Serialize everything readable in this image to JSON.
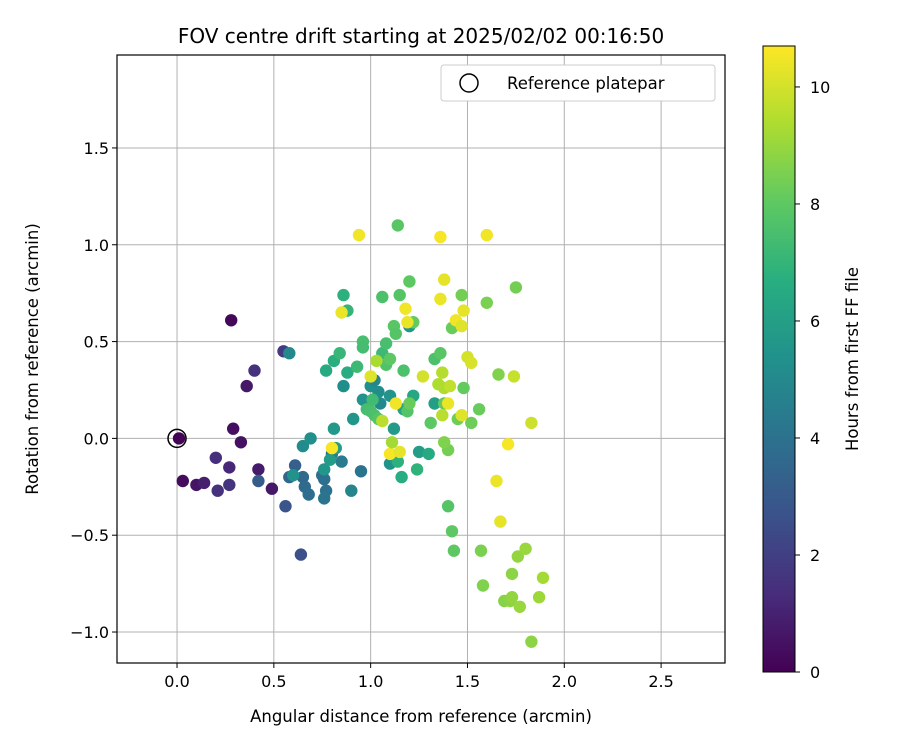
{
  "chart_data": {
    "type": "scatter",
    "title": "FOV centre drift starting at 2025/02/02 00:16:50",
    "xlabel": "Angular distance from reference (arcmin)",
    "ylabel": "Rotation from reference (arcmin)",
    "xlim": [
      -0.31,
      2.83
    ],
    "ylim": [
      -1.16,
      1.98
    ],
    "xticks": [
      0.0,
      0.5,
      1.0,
      1.5,
      2.0,
      2.5
    ],
    "xtick_labels": [
      "0.0",
      "0.5",
      "1.0",
      "1.5",
      "2.0",
      "2.5"
    ],
    "yticks": [
      -1.0,
      -0.5,
      0.0,
      0.5,
      1.0,
      1.5
    ],
    "ytick_labels": [
      "−1.0",
      "−0.5",
      "0.0",
      "0.5",
      "1.0",
      "1.5"
    ],
    "grid": true,
    "legend": {
      "position": "top-right",
      "entries": [
        {
          "label": "Reference platepar",
          "marker": "open-circle"
        }
      ],
      "reference_point": [
        0.0,
        0.0
      ]
    },
    "colorbar": {
      "label": "Hours from first FF file",
      "colormap": "viridis",
      "range": [
        0,
        10.7
      ],
      "ticks": [
        0,
        2,
        4,
        6,
        8,
        10
      ],
      "tick_labels": [
        "0",
        "2",
        "4",
        "6",
        "8",
        "10"
      ]
    },
    "series": [
      {
        "points": [
          [
            0.01,
            0.0,
            0.05
          ],
          [
            0.03,
            -0.22,
            0.3
          ],
          [
            0.1,
            -0.24,
            0.6
          ],
          [
            0.14,
            -0.23,
            0.9
          ],
          [
            0.28,
            0.61,
            0.2
          ],
          [
            0.29,
            0.05,
            0.4
          ],
          [
            0.33,
            -0.02,
            0.5
          ],
          [
            0.36,
            0.27,
            0.7
          ],
          [
            0.42,
            -0.16,
            0.8
          ],
          [
            0.49,
            -0.26,
            0.7
          ],
          [
            0.27,
            -0.15,
            1.2
          ],
          [
            0.2,
            -0.1,
            1.4
          ],
          [
            0.21,
            -0.27,
            1.5
          ],
          [
            0.27,
            -0.24,
            1.6
          ],
          [
            0.4,
            0.35,
            1.5
          ],
          [
            0.55,
            0.45,
            1.8
          ],
          [
            0.64,
            -0.6,
            2.6
          ],
          [
            0.56,
            -0.35,
            2.8
          ],
          [
            0.42,
            -0.22,
            3.1
          ],
          [
            0.61,
            -0.14,
            3.2
          ],
          [
            0.58,
            -0.2,
            3.5
          ],
          [
            0.65,
            -0.2,
            3.6
          ],
          [
            0.66,
            -0.25,
            3.7
          ],
          [
            0.68,
            -0.29,
            3.8
          ],
          [
            0.76,
            -0.21,
            3.9
          ],
          [
            0.77,
            -0.27,
            4.0
          ],
          [
            0.76,
            -0.31,
            4.1
          ],
          [
            0.75,
            -0.19,
            3.9
          ],
          [
            0.8,
            -0.08,
            4.2
          ],
          [
            0.95,
            -0.17,
            4.1
          ],
          [
            0.85,
            -0.12,
            4.4
          ],
          [
            0.9,
            -0.27,
            4.8
          ],
          [
            0.65,
            -0.04,
            5.1
          ],
          [
            0.69,
            0.0,
            5.3
          ],
          [
            0.58,
            0.44,
            5.0
          ],
          [
            0.6,
            -0.19,
            5.4
          ],
          [
            0.76,
            -0.16,
            5.6
          ],
          [
            0.79,
            -0.11,
            5.8
          ],
          [
            0.82,
            -0.05,
            5.9
          ],
          [
            0.81,
            0.05,
            5.7
          ],
          [
            0.86,
            0.27,
            5.2
          ],
          [
            0.91,
            0.1,
            5.6
          ],
          [
            0.96,
            0.2,
            5.4
          ],
          [
            1.0,
            0.27,
            5.3
          ],
          [
            1.02,
            0.3,
            4.9
          ],
          [
            1.04,
            0.24,
            5.2
          ],
          [
            1.05,
            0.18,
            5.0
          ],
          [
            1.1,
            0.22,
            5.5
          ],
          [
            1.1,
            -0.13,
            5.4
          ],
          [
            1.2,
            0.58,
            5.6
          ],
          [
            1.12,
            0.05,
            5.8
          ],
          [
            1.25,
            -0.07,
            5.9
          ],
          [
            1.17,
            0.15,
            6.2
          ],
          [
            1.22,
            0.22,
            6.3
          ],
          [
            1.3,
            -0.08,
            6.5
          ],
          [
            1.33,
            0.18,
            6.0
          ],
          [
            1.16,
            -0.2,
            6.6
          ],
          [
            1.14,
            -0.12,
            6.8
          ],
          [
            1.24,
            -0.16,
            6.9
          ],
          [
            0.77,
            0.35,
            6.5
          ],
          [
            0.81,
            0.4,
            6.7
          ],
          [
            0.84,
            0.44,
            7.1
          ],
          [
            0.86,
            0.74,
            6.8
          ],
          [
            0.88,
            0.66,
            7.0
          ],
          [
            0.88,
            0.34,
            6.6
          ],
          [
            0.93,
            0.37,
            7.2
          ],
          [
            0.96,
            0.5,
            7.5
          ],
          [
            0.96,
            0.47,
            7.4
          ],
          [
            0.98,
            0.15,
            7.4
          ],
          [
            1.0,
            0.14,
            7.5
          ],
          [
            1.02,
            0.12,
            7.6
          ],
          [
            1.01,
            0.2,
            7.3
          ],
          [
            1.04,
            0.1,
            7.8
          ],
          [
            1.06,
            0.44,
            7.2
          ],
          [
            1.06,
            0.73,
            7.6
          ],
          [
            1.08,
            0.49,
            7.5
          ],
          [
            1.08,
            0.38,
            7.7
          ],
          [
            1.1,
            0.41,
            8.0
          ],
          [
            1.12,
            0.58,
            7.9
          ],
          [
            1.13,
            0.54,
            7.8
          ],
          [
            1.14,
            1.1,
            7.9
          ],
          [
            1.15,
            0.74,
            7.8
          ],
          [
            1.17,
            0.35,
            7.6
          ],
          [
            1.19,
            0.14,
            7.8
          ],
          [
            1.2,
            0.81,
            8.0
          ],
          [
            1.22,
            0.6,
            8.1
          ],
          [
            1.2,
            0.18,
            8.2
          ],
          [
            1.31,
            0.08,
            8.0
          ],
          [
            1.33,
            0.41,
            7.6
          ],
          [
            1.36,
            0.44,
            7.9
          ],
          [
            1.38,
            0.18,
            8.1
          ],
          [
            1.4,
            -0.06,
            8.4
          ],
          [
            1.38,
            -0.02,
            8.6
          ],
          [
            1.4,
            -0.35,
            7.8
          ],
          [
            1.42,
            -0.48,
            8.0
          ],
          [
            1.43,
            -0.58,
            8.0
          ],
          [
            1.42,
            0.57,
            8.2
          ],
          [
            1.45,
            0.1,
            8.3
          ],
          [
            1.47,
            0.74,
            8.4
          ],
          [
            1.48,
            0.26,
            8.1
          ],
          [
            1.52,
            0.08,
            8.3
          ],
          [
            1.56,
            0.15,
            8.2
          ],
          [
            1.57,
            -0.58,
            8.5
          ],
          [
            1.58,
            -0.76,
            8.6
          ],
          [
            1.6,
            0.7,
            8.5
          ],
          [
            1.66,
            0.33,
            8.6
          ],
          [
            1.69,
            -0.84,
            8.7
          ],
          [
            1.72,
            -0.84,
            8.8
          ],
          [
            1.73,
            -0.82,
            8.9
          ],
          [
            1.73,
            -0.7,
            8.8
          ],
          [
            1.75,
            0.78,
            8.4
          ],
          [
            1.76,
            -0.61,
            8.9
          ],
          [
            1.77,
            -0.87,
            9.0
          ],
          [
            1.8,
            -0.57,
            9.0
          ],
          [
            1.83,
            -1.05,
            8.8
          ],
          [
            1.87,
            -0.82,
            9.1
          ],
          [
            1.89,
            -0.72,
            9.2
          ],
          [
            1.37,
            0.34,
            9.5
          ],
          [
            1.38,
            0.26,
            9.4
          ],
          [
            1.37,
            0.12,
            9.6
          ],
          [
            1.41,
            0.27,
            9.7
          ],
          [
            1.36,
            0.72,
            10.4
          ],
          [
            1.38,
            0.82,
            10.3
          ],
          [
            1.36,
            1.04,
            10.6
          ],
          [
            1.44,
            0.61,
            10.5
          ],
          [
            1.47,
            0.58,
            10.2
          ],
          [
            1.48,
            0.66,
            10.3
          ],
          [
            1.5,
            0.42,
            10.0
          ],
          [
            1.52,
            0.39,
            10.1
          ],
          [
            1.47,
            0.12,
            10.2
          ],
          [
            1.4,
            0.18,
            10.4
          ],
          [
            1.6,
            1.05,
            10.5
          ],
          [
            1.65,
            -0.22,
            10.4
          ],
          [
            1.67,
            -0.43,
            10.3
          ],
          [
            1.71,
            -0.03,
            10.6
          ],
          [
            1.74,
            0.32,
            9.8
          ],
          [
            1.83,
            0.08,
            9.9
          ],
          [
            0.94,
            1.05,
            10.5
          ],
          [
            0.85,
            0.65,
            10.4
          ],
          [
            0.8,
            -0.05,
            10.6
          ],
          [
            1.0,
            0.32,
            10.2
          ],
          [
            1.1,
            -0.08,
            10.6
          ],
          [
            1.13,
            0.18,
            10.5
          ],
          [
            1.15,
            -0.07,
            10.3
          ],
          [
            1.18,
            0.67,
            10.5
          ],
          [
            1.19,
            0.6,
            10.4
          ],
          [
            1.27,
            0.32,
            10.0
          ],
          [
            1.03,
            0.4,
            9.3
          ],
          [
            1.11,
            -0.02,
            9.2
          ],
          [
            1.06,
            0.09,
            9.6
          ],
          [
            1.35,
            0.28,
            9.4
          ]
        ]
      }
    ]
  }
}
